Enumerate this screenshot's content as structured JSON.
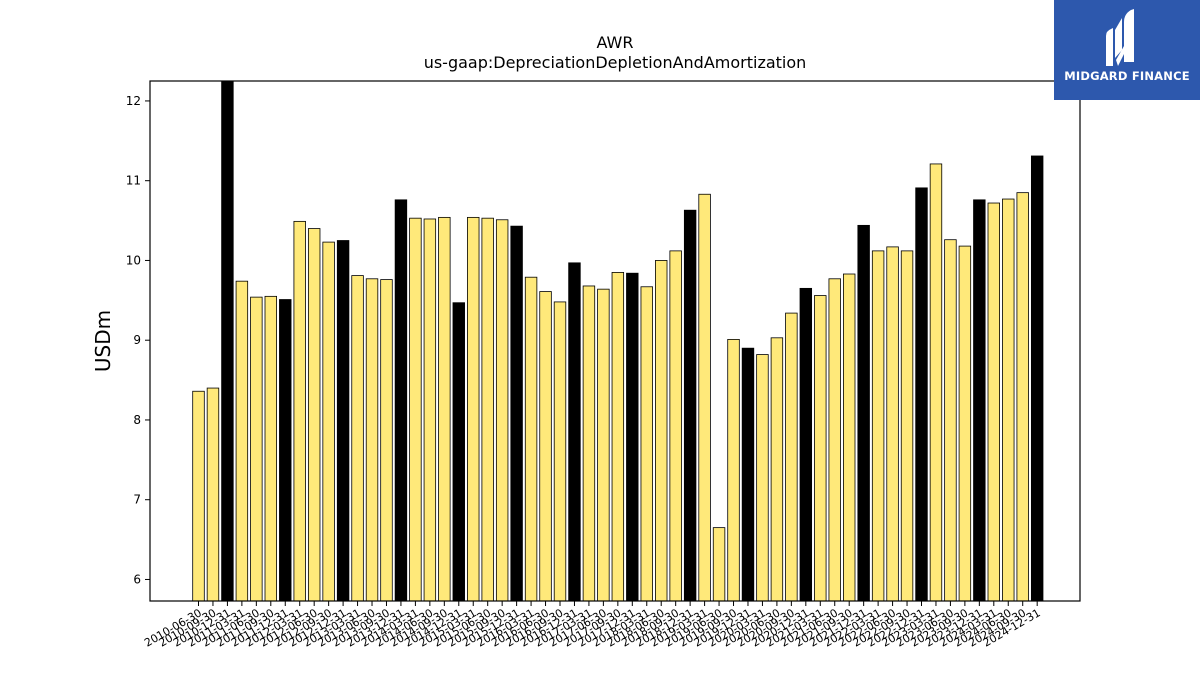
{
  "brand": {
    "name": "MIDGARD FINANCE",
    "color": "#2d58ad"
  },
  "chart_data": {
    "type": "bar",
    "title": "AWR",
    "subtitle": "us-gaap:DepreciationDepletionAndAmortization",
    "xlabel": "",
    "ylabel": "USDm",
    "ylim": [
      5.73,
      12.25
    ],
    "yticks": [
      6,
      7,
      8,
      9,
      10,
      11,
      12
    ],
    "grid": false,
    "colors": {
      "quarter": "#ffe97a",
      "year_end": "#000000",
      "edge": "#000000"
    },
    "categories": [
      "2010-06-30",
      "2010-09-30",
      "2010-12-31",
      "2011-03-31",
      "2011-06-30",
      "2011-09-30",
      "2011-12-31",
      "2012-03-31",
      "2012-06-30",
      "2012-09-30",
      "2012-12-31",
      "2013-03-31",
      "2013-06-30",
      "2013-09-30",
      "2013-12-31",
      "2014-03-31",
      "2014-06-30",
      "2014-09-30",
      "2014-12-31",
      "2015-03-31",
      "2015-06-30",
      "2015-09-30",
      "2015-12-31",
      "2016-03-31",
      "2016-06-30",
      "2016-09-30",
      "2016-12-31",
      "2017-03-31",
      "2017-06-30",
      "2017-09-30",
      "2017-12-31",
      "2018-03-31",
      "2018-06-30",
      "2018-09-30",
      "2018-12-31",
      "2019-03-31",
      "2019-06-30",
      "2019-09-30",
      "2019-12-31",
      "2020-03-31",
      "2020-06-30",
      "2020-09-30",
      "2020-12-31",
      "2021-03-31",
      "2021-06-30",
      "2021-09-30",
      "2021-12-31",
      "2022-03-31",
      "2022-06-30",
      "2022-09-30",
      "2022-12-31",
      "2023-03-31",
      "2023-06-30",
      "2023-09-30",
      "2023-12-31",
      "2024-03-31",
      "2024-06-30",
      "2024-09-30",
      "2024-12-31"
    ],
    "values": [
      8.36,
      8.4,
      12.35,
      9.74,
      9.54,
      9.55,
      9.51,
      10.49,
      10.4,
      10.23,
      10.25,
      9.81,
      9.77,
      9.76,
      10.76,
      10.53,
      10.52,
      10.54,
      9.47,
      10.54,
      10.53,
      10.51,
      10.43,
      9.79,
      9.61,
      9.48,
      9.97,
      9.68,
      9.64,
      9.85,
      9.84,
      9.67,
      10.0,
      10.12,
      10.63,
      10.83,
      6.65,
      9.01,
      8.9,
      8.82,
      9.03,
      9.34,
      9.65,
      9.56,
      9.77,
      9.83,
      10.44,
      10.12,
      10.17,
      10.12,
      10.91,
      11.21,
      10.26,
      10.18,
      10.76,
      10.72,
      10.77,
      10.85,
      11.31
    ],
    "year_end": [
      false,
      false,
      true,
      false,
      false,
      false,
      true,
      false,
      false,
      false,
      true,
      false,
      false,
      false,
      true,
      false,
      false,
      false,
      true,
      false,
      false,
      false,
      true,
      false,
      false,
      false,
      true,
      false,
      false,
      false,
      true,
      false,
      false,
      false,
      true,
      false,
      false,
      false,
      true,
      false,
      false,
      false,
      true,
      false,
      false,
      false,
      true,
      false,
      false,
      false,
      true,
      false,
      false,
      false,
      true,
      false,
      false,
      false,
      true
    ]
  }
}
